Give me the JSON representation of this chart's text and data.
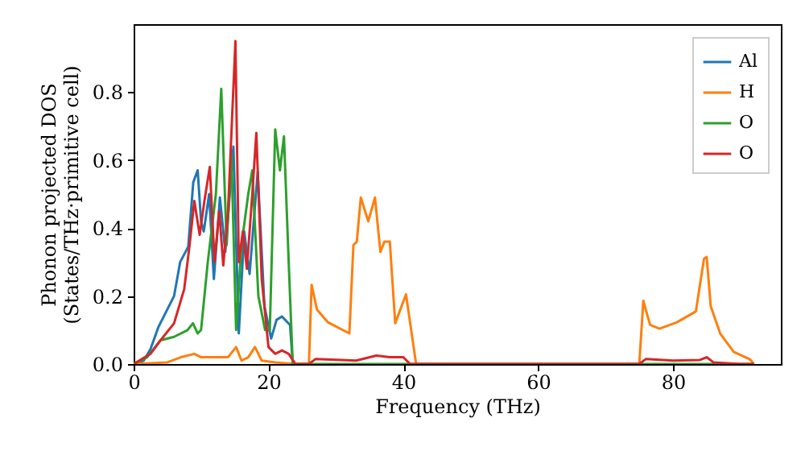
{
  "chart_data": {
    "type": "line",
    "xlabel": "Frequency (THz)",
    "ylabel": "Phonon projected DOS\n(States/THz·primitive cell)",
    "xlim": [
      0,
      96
    ],
    "ylim": [
      0,
      1.0
    ],
    "xticks": [
      0,
      20,
      40,
      60,
      80
    ],
    "yticks": [
      {
        "value": 0,
        "label": "0.0"
      },
      0.2,
      0.4,
      0.6,
      0.8
    ],
    "grid": false,
    "legend": "top right",
    "marker": "none",
    "line_style": "solid",
    "series": [
      {
        "name": "Al",
        "color": "#1f77b4",
        "x": [
          0,
          1.5,
          2.5,
          3.7,
          6,
          6.9,
          8.1,
          8.85,
          9.5,
          10,
          10.4,
          11.2,
          11.9,
          12.8,
          13.6,
          14.8,
          15.6,
          16.4,
          17.2,
          18.4,
          19.4,
          20.4,
          21.2,
          22,
          23.2,
          23.6
        ],
        "values": [
          0,
          0.01,
          0.044,
          0.11,
          0.2,
          0.3,
          0.345,
          0.535,
          0.57,
          0.42,
          0.39,
          0.5,
          0.25,
          0.49,
          0.33,
          0.64,
          0.09,
          0.39,
          0.265,
          0.565,
          0.17,
          0.075,
          0.13,
          0.14,
          0.115,
          0
        ]
      },
      {
        "name": "H",
        "color": "#ff7f0e",
        "x": [
          0,
          5,
          7,
          9,
          10,
          12,
          14,
          15.2,
          16,
          17,
          18,
          19,
          21,
          24,
          26,
          26.4,
          27.2,
          28.8,
          32,
          32.6,
          33.1,
          33.7,
          34.8,
          35.8,
          36.6,
          37.2,
          38,
          38.8,
          40.4,
          41.9,
          60,
          75,
          75.6,
          76.6,
          78,
          80.6,
          83.4,
          84.6,
          85,
          85.6,
          87,
          89,
          91.4,
          92
        ],
        "values": [
          0,
          0.005,
          0.02,
          0.03,
          0.02,
          0.02,
          0.02,
          0.05,
          0.01,
          0.02,
          0.05,
          0.01,
          0.005,
          0,
          0,
          0.233,
          0.16,
          0.123,
          0.09,
          0.35,
          0.36,
          0.49,
          0.42,
          0.49,
          0.33,
          0.36,
          0.36,
          0.12,
          0.205,
          0,
          0,
          0,
          0.186,
          0.115,
          0.104,
          0.123,
          0.155,
          0.31,
          0.315,
          0.17,
          0.09,
          0.036,
          0.014,
          0
        ]
      },
      {
        "name": "O",
        "color": "#2ca02c",
        "x": [
          0,
          2,
          4,
          6,
          8,
          8.8,
          9.5,
          10,
          11,
          12.2,
          13,
          13.8,
          14.5,
          15.2,
          16,
          17,
          17.6,
          18.5,
          19.5,
          20.2,
          21,
          21.7,
          22.3,
          23,
          23.6,
          40,
          60,
          92
        ],
        "values": [
          0,
          0.02,
          0.07,
          0.08,
          0.1,
          0.12,
          0.09,
          0.1,
          0.3,
          0.5,
          0.81,
          0.35,
          0.62,
          0.1,
          0.35,
          0.5,
          0.57,
          0.2,
          0.1,
          0.1,
          0.69,
          0.57,
          0.67,
          0.3,
          0,
          0,
          0,
          0
        ]
      },
      {
        "name": "O",
        "color": "#d62728",
        "x": [
          0,
          2.5,
          4,
          6,
          7.5,
          8.3,
          9,
          9.8,
          10.5,
          11.3,
          12,
          12.7,
          13.3,
          14,
          15.1,
          15.6,
          16.2,
          16.8,
          17.6,
          18.2,
          19,
          20,
          21,
          22,
          23,
          24,
          26,
          27,
          33,
          36,
          38,
          40,
          41,
          60,
          75,
          76,
          80,
          84,
          85,
          86,
          90,
          92
        ],
        "values": [
          0,
          0.03,
          0.07,
          0.12,
          0.22,
          0.35,
          0.48,
          0.38,
          0.48,
          0.58,
          0.3,
          0.45,
          0.29,
          0.45,
          0.95,
          0.3,
          0.39,
          0.28,
          0.5,
          0.68,
          0.25,
          0.05,
          0.03,
          0.04,
          0.03,
          0,
          0,
          0.015,
          0.01,
          0.025,
          0.02,
          0.02,
          0,
          0,
          0,
          0.015,
          0.01,
          0.012,
          0.02,
          0.005,
          0,
          0
        ]
      }
    ]
  }
}
